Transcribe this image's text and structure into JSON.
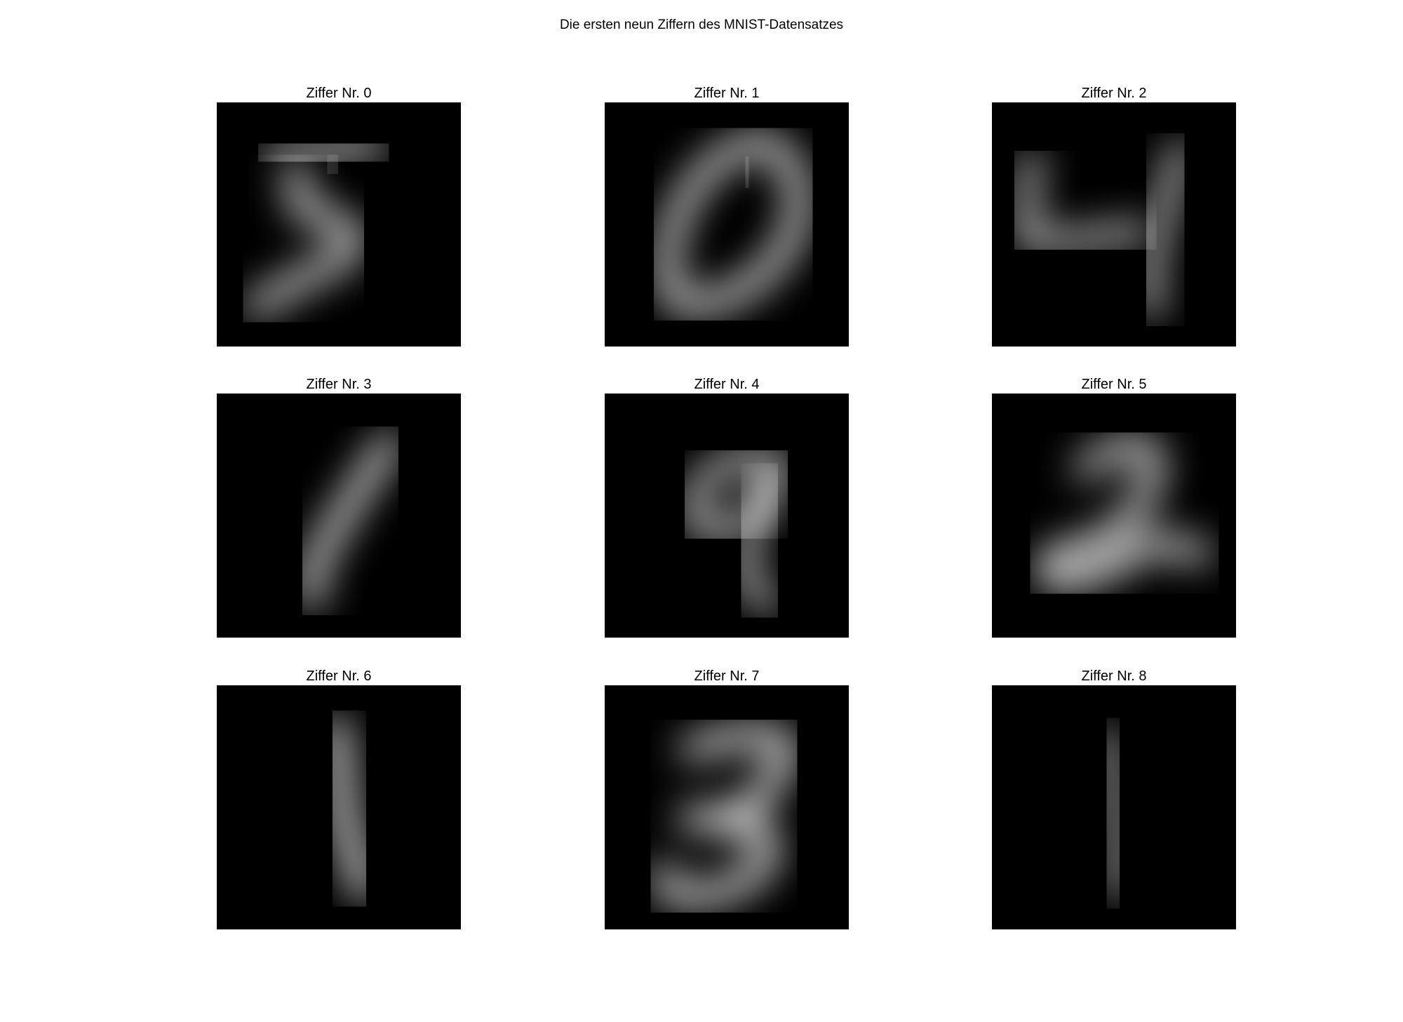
{
  "figure": {
    "title": "Die ersten neun Ziffern des MNIST-Datensatzes"
  },
  "panels": [
    {
      "title": "Ziffer Nr. 0",
      "digit": "5"
    },
    {
      "title": "Ziffer Nr. 1",
      "digit": "0"
    },
    {
      "title": "Ziffer Nr. 2",
      "digit": "4"
    },
    {
      "title": "Ziffer Nr. 3",
      "digit": "1"
    },
    {
      "title": "Ziffer Nr. 4",
      "digit": "9"
    },
    {
      "title": "Ziffer Nr. 5",
      "digit": "2"
    },
    {
      "title": "Ziffer Nr. 6",
      "digit": "1"
    },
    {
      "title": "Ziffer Nr. 7",
      "digit": "3"
    },
    {
      "title": "Ziffer Nr. 8",
      "digit": "1"
    }
  ],
  "colors": {
    "background": "#000000",
    "ink": "#f2f2f2"
  },
  "colormap": "gray"
}
